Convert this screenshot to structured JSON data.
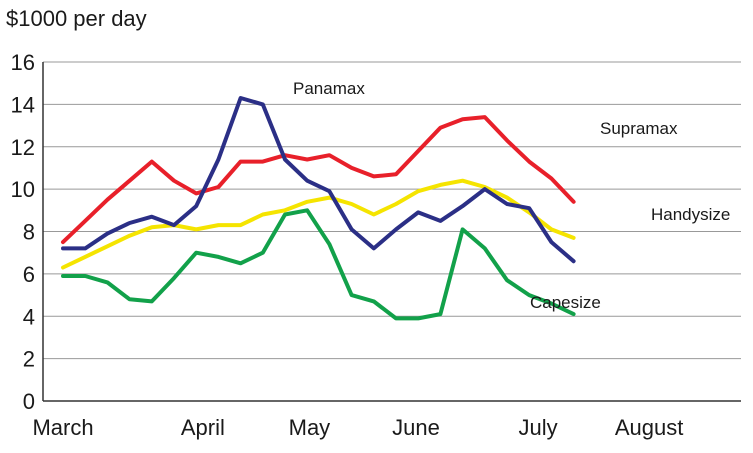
{
  "chart_data": {
    "type": "line",
    "ylabel": "$1000 per day",
    "ylim": [
      0,
      16
    ],
    "yticks": [
      0,
      2,
      4,
      6,
      8,
      10,
      12,
      14,
      16
    ],
    "x_ticks": [
      "March",
      "April",
      "May",
      "June",
      "July",
      "August"
    ],
    "x_tick_index": [
      0,
      6.3,
      11.1,
      15.9,
      21.4,
      26.4
    ],
    "grid": "horizontal",
    "series": [
      {
        "name": "Supramax",
        "color": "#e8202a",
        "values": [
          7.5,
          8.5,
          9.5,
          10.4,
          11.3,
          10.4,
          9.8,
          10.1,
          11.3,
          11.3,
          11.6,
          11.4,
          11.6,
          11.0,
          10.6,
          10.7,
          11.8,
          12.9,
          13.3,
          13.4,
          12.3,
          11.3,
          10.5,
          9.4
        ]
      },
      {
        "name": "Panamax",
        "color": "#2b2f86",
        "values": [
          7.2,
          7.2,
          7.9,
          8.4,
          8.7,
          8.3,
          9.2,
          11.4,
          14.3,
          14.0,
          11.4,
          10.4,
          9.9,
          8.1,
          7.2,
          8.1,
          8.9,
          8.5,
          9.2,
          10.0,
          9.3,
          9.1,
          7.5,
          6.6
        ]
      },
      {
        "name": "Handysize",
        "color": "#f5e400",
        "values": [
          6.3,
          6.8,
          7.3,
          7.8,
          8.2,
          8.3,
          8.1,
          8.3,
          8.3,
          8.8,
          9.0,
          9.4,
          9.6,
          9.3,
          8.8,
          9.3,
          9.9,
          10.2,
          10.4,
          10.1,
          9.6,
          8.9,
          8.1,
          7.7
        ]
      },
      {
        "name": "Capesize",
        "color": "#12a14a",
        "values": [
          5.9,
          5.9,
          5.6,
          4.8,
          4.7,
          5.8,
          7.0,
          6.8,
          6.5,
          7.0,
          8.8,
          9.0,
          7.4,
          5.0,
          4.7,
          3.9,
          3.9,
          4.1,
          8.1,
          7.2,
          5.7,
          5.0,
          4.6,
          4.1
        ]
      }
    ]
  }
}
